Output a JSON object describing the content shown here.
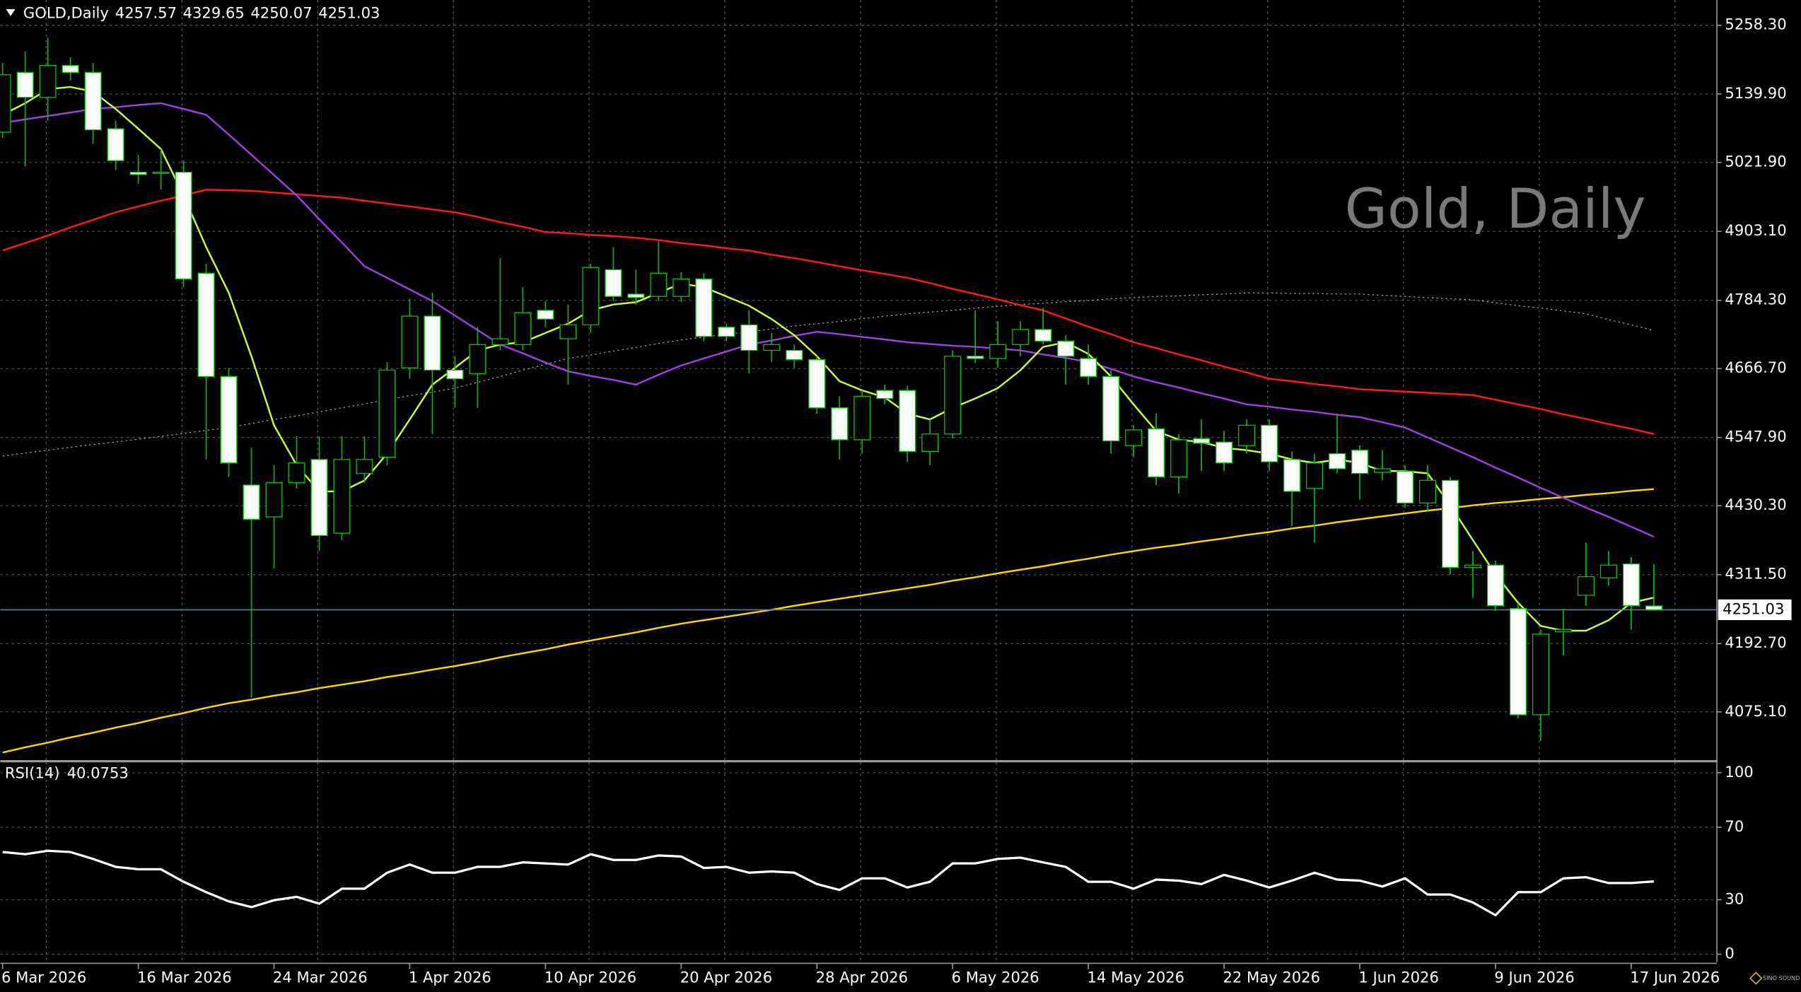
{
  "chart_data": {
    "type": "candlestick",
    "symbol": "GOLD,Daily",
    "watermark": "Gold, Daily",
    "logo": "SINO SOUND",
    "categories": [
      "6 Mar 2026",
      null,
      null,
      null,
      null,
      null,
      "16 Mar 2026",
      null,
      null,
      null,
      null,
      null,
      "24 Mar 2026",
      null,
      null,
      null,
      null,
      null,
      "1 Apr 2026",
      null,
      null,
      null,
      null,
      null,
      "10 Apr 2026",
      null,
      null,
      null,
      null,
      null,
      "20 Apr 2026",
      null,
      null,
      null,
      null,
      null,
      "28 Apr 2026",
      null,
      null,
      null,
      null,
      null,
      "6 May 2026",
      null,
      null,
      null,
      null,
      null,
      "14 May 2026",
      null,
      null,
      null,
      null,
      null,
      "22 May 2026",
      null,
      null,
      null,
      null,
      null,
      "1 Jun 2026",
      null,
      null,
      null,
      null,
      null,
      "9 Jun 2026",
      null,
      null,
      null,
      null,
      null,
      "17 Jun 2026",
      null
    ],
    "open": [
      5074,
      5177,
      5134,
      5189,
      5177,
      5080,
      5005,
      5003,
      5005,
      4831,
      4653,
      4466,
      4411,
      4470,
      4510,
      4383,
      4486,
      4514,
      4668,
      4757,
      4664,
      4658,
      4708,
      4708,
      4767,
      4718,
      4742,
      4837,
      4795,
      4791,
      4791,
      4821,
      4738,
      4742,
      4698,
      4698,
      4682,
      4599,
      4544,
      4629,
      4629,
      4524,
      4554,
      4688,
      4684,
      4708,
      4734,
      4714,
      4684,
      4653,
      4534,
      4563,
      4480,
      4546,
      4540,
      4534,
      4569,
      4510,
      4460,
      4520,
      4526,
      4488,
      4490,
      4435,
      4474,
      4324,
      4328,
      4253,
      4070,
      4213,
      4276,
      4306,
      4330,
      4257.57
    ],
    "high": [
      5193,
      5213,
      5237,
      5203,
      5193,
      5094,
      5035,
      5045,
      5025,
      4847,
      4668,
      4530,
      4500,
      4550,
      4550,
      4550,
      4550,
      4678,
      4787,
      4797,
      4688,
      4738,
      4857,
      4807,
      4783,
      4777,
      4847,
      4876,
      4837,
      4886,
      4833,
      4831,
      4744,
      4767,
      4728,
      4708,
      4688,
      4619,
      4629,
      4639,
      4637,
      4579,
      4698,
      4767,
      4748,
      4748,
      4771,
      4724,
      4708,
      4664,
      4569,
      4589,
      4554,
      4579,
      4559,
      4579,
      4579,
      4524,
      4520,
      4589,
      4534,
      4526,
      4500,
      4500,
      4480,
      4352,
      4336,
      4263,
      4217,
      4253,
      4367,
      4352,
      4342,
      4329.65
    ],
    "low": [
      5064,
      5015,
      5094,
      5163,
      5054,
      5009,
      4985,
      4975,
      4807,
      4510,
      4480,
      4100,
      4322,
      4460,
      4352,
      4371,
      4470,
      4500,
      4649,
      4554,
      4599,
      4599,
      4698,
      4698,
      4738,
      4639,
      4728,
      4783,
      4777,
      4783,
      4781,
      4714,
      4714,
      4658,
      4678,
      4668,
      4589,
      4510,
      4520,
      4605,
      4506,
      4500,
      4546,
      4676,
      4668,
      4688,
      4708,
      4639,
      4639,
      4520,
      4514,
      4466,
      4451,
      4490,
      4490,
      4520,
      4490,
      4395,
      4367,
      4486,
      4441,
      4474,
      4427,
      4421,
      4312,
      4272,
      4249,
      4064,
      4025,
      4173,
      4258,
      4292,
      4217,
      4250.07
    ],
    "close": [
      5173,
      5134,
      5189,
      5177,
      5078,
      5025,
      5001,
      5005,
      4821,
      4653,
      4504,
      4407,
      4470,
      4504,
      4379,
      4510,
      4510,
      4664,
      4757,
      4664,
      4649,
      4708,
      4718,
      4763,
      4752,
      4742,
      4841,
      4791,
      4789,
      4831,
      4821,
      4722,
      4722,
      4698,
      4708,
      4682,
      4599,
      4544,
      4619,
      4615,
      4524,
      4554,
      4688,
      4684,
      4708,
      4734,
      4714,
      4688,
      4653,
      4542,
      4561,
      4480,
      4544,
      4538,
      4504,
      4569,
      4506,
      4455,
      4504,
      4494,
      4486,
      4494,
      4435,
      4474,
      4324,
      4328,
      4258,
      4070,
      4209,
      4217,
      4308,
      4328,
      4258,
      4251.03
    ],
    "bull_color": "#000000",
    "bear_color": "#ffffff",
    "wick_color": "#00c800",
    "price_line_color": "#6a7a8c",
    "ylim": [
      3992,
      5301.8
    ],
    "yticks": [
      {
        "value": 5258.3,
        "label": "5258.30"
      },
      {
        "value": 5139.9,
        "label": "5139.90"
      },
      {
        "value": 5021.9,
        "label": "5021.90"
      },
      {
        "value": 4903.1,
        "label": "4903.10"
      },
      {
        "value": 4784.3,
        "label": "4784.30"
      },
      {
        "value": 4666.7,
        "label": "4666.70"
      },
      {
        "value": 4547.9,
        "label": "4547.90"
      },
      {
        "value": 4430.3,
        "label": "4430.30"
      },
      {
        "value": 4311.5,
        "label": "4311.50"
      },
      {
        "value": 4192.7,
        "label": "4192.70"
      },
      {
        "value": 4075.1,
        "label": "4075.10"
      }
    ],
    "grid": true,
    "series": [
      {
        "color": "#ffd700",
        "dashed": false,
        "values": [
          4005,
          4014,
          4022,
          4031,
          4039,
          4048,
          4056,
          4065,
          4073,
          4082,
          4090,
          4096,
          4103,
          4109,
          4116,
          4122,
          4128,
          4135,
          4141,
          4148,
          4154,
          4161,
          4169,
          4176,
          4183,
          4191,
          4198,
          4205,
          4212,
          4220,
          4227,
          4233,
          4239,
          4245,
          4251,
          4258,
          4264,
          4270,
          4276,
          4282,
          4288,
          4294,
          4301,
          4307,
          4314,
          4320,
          4326,
          4333,
          4339,
          4346,
          4352,
          4358,
          4363,
          4369,
          4374,
          4380,
          4385,
          4391,
          4396,
          4402,
          4407,
          4412,
          4417,
          4422,
          4426,
          4431,
          4435,
          4438,
          4442,
          4445,
          4449,
          4452,
          4456,
          4459
        ]
      },
      {
        "color": "#a0a0a0",
        "dashed": true,
        "values": [
          4516,
          4521,
          4526,
          4531,
          4536,
          4540,
          4545,
          4550,
          4555,
          4560,
          4565,
          4572,
          4579,
          4585,
          4592,
          4599,
          4606,
          4613,
          4620,
          4626,
          4633,
          4643,
          4653,
          4664,
          4674,
          4684,
          4690,
          4697,
          4703,
          4710,
          4716,
          4721,
          4726,
          4730,
          4735,
          4740,
          4744,
          4748,
          4753,
          4757,
          4761,
          4764,
          4767,
          4771,
          4774,
          4777,
          4779,
          4782,
          4784,
          4787,
          4789,
          4791,
          4792,
          4794,
          4795,
          4797,
          4797,
          4796,
          4796,
          4795,
          4795,
          4793,
          4791,
          4789,
          4787,
          4785,
          4780,
          4775,
          4771,
          4766,
          4761,
          4751,
          4742,
          4732
        ]
      },
      {
        "color": "#ff1a1a",
        "dashed": false,
        "values": [
          4870,
          4883,
          4896,
          4910,
          4923,
          4936,
          4946,
          4956,
          4965,
          4975,
          4974,
          4973,
          4970,
          4967,
          4964,
          4961,
          4956,
          4951,
          4946,
          4941,
          4936,
          4928,
          4919,
          4911,
          4902,
          4900,
          4897,
          4895,
          4892,
          4888,
          4883,
          4879,
          4874,
          4870,
          4863,
          4857,
          4850,
          4843,
          4836,
          4830,
          4823,
          4814,
          4804,
          4795,
          4786,
          4776,
          4767,
          4753,
          4739,
          4726,
          4712,
          4702,
          4691,
          4681,
          4670,
          4660,
          4649,
          4645,
          4640,
          4636,
          4631,
          4629,
          4627,
          4625,
          4623,
          4621,
          4613,
          4605,
          4597,
          4588,
          4580,
          4571,
          4563,
          4554
        ]
      },
      {
        "color": "#a040e0",
        "dashed": false,
        "values": [
          5090,
          5096,
          5102,
          5108,
          5114,
          5117,
          5121,
          5124,
          5114,
          5104,
          5070,
          5035,
          5000,
          4965,
          4924,
          4884,
          4843,
          4823,
          4803,
          4783,
          4758,
          4733,
          4708,
          4693,
          4677,
          4662,
          4654,
          4647,
          4639,
          4656,
          4672,
          4684,
          4696,
          4708,
          4715,
          4723,
          4730,
          4726,
          4721,
          4717,
          4712,
          4709,
          4706,
          4704,
          4701,
          4698,
          4691,
          4685,
          4678,
          4666,
          4653,
          4643,
          4634,
          4624,
          4615,
          4605,
          4601,
          4596,
          4592,
          4587,
          4583,
          4574,
          4565,
          4548,
          4531,
          4514,
          4496,
          4479,
          4461,
          4444,
          4427,
          4411,
          4394,
          4377
        ]
      },
      {
        "color": "#c8ff40",
        "dashed": false,
        "values": [
          5104,
          5124,
          5148,
          5152,
          5144,
          5114,
          5080,
          5045,
          4965,
          4876,
          4797,
          4688,
          4569,
          4500,
          4455,
          4455,
          4474,
          4520,
          4579,
          4639,
          4668,
          4698,
          4708,
          4712,
          4728,
          4744,
          4767,
          4777,
          4781,
          4797,
          4813,
          4807,
          4791,
          4775,
          4752,
          4724,
          4688,
          4645,
          4629,
          4617,
          4589,
          4579,
          4599,
          4615,
          4633,
          4664,
          4704,
          4712,
          4692,
          4653,
          4605,
          4559,
          4544,
          4540,
          4530,
          4526,
          4520,
          4510,
          4504,
          4510,
          4504,
          4490,
          4490,
          4486,
          4431,
          4371,
          4312,
          4263,
          4223,
          4215,
          4215,
          4233,
          4263,
          4272
        ]
      }
    ],
    "rsi": {
      "label": "RSI(14)",
      "color": "#ffffff",
      "ylim": [
        -4.4,
        105.7
      ],
      "yticks": [
        100,
        70,
        30,
        0
      ],
      "values": [
        56.3,
        55.1,
        57,
        56.3,
        52.5,
        48.1,
        46.8,
        46.8,
        39.9,
        34.2,
        29.1,
        25.9,
        29.7,
        31.6,
        27.8,
        36.1,
        36.1,
        44.9,
        49.4,
        44.9,
        44.9,
        48.1,
        48.1,
        50.6,
        50.0,
        49.4,
        55.1,
        51.9,
        51.9,
        54.4,
        53.8,
        47.5,
        48.1,
        44.9,
        45.6,
        44.9,
        38.6,
        35.4,
        41.8,
        41.8,
        36.7,
        39.9,
        50.0,
        50.0,
        52.5,
        53.2,
        50.6,
        48.1,
        39.9,
        39.9,
        36.1,
        41.1,
        40.5,
        38.6,
        43.7,
        40.5,
        36.7,
        40.5,
        44.9,
        41.1,
        40.5,
        37.3,
        41.8,
        32.9,
        32.9,
        28.5,
        21.5,
        34.2,
        34.2,
        41.8,
        42.4,
        39.2,
        39.2,
        40.0753
      ]
    }
  }
}
